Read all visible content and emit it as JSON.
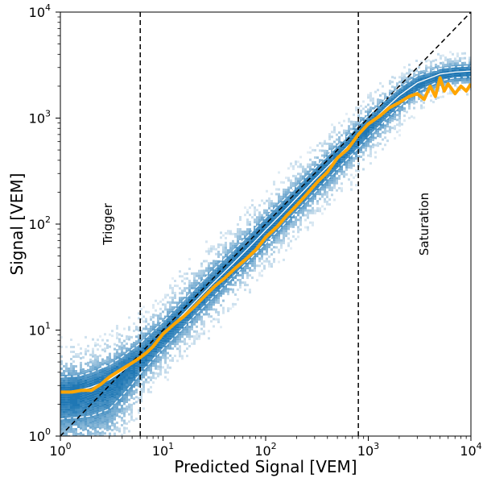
{
  "chart_data": {
    "type": "heatmap",
    "title": "",
    "xlabel": "Predicted Signal [VEM]",
    "ylabel": "Signal [VEM]",
    "xscale": "log",
    "yscale": "log",
    "xlim": [
      1,
      10000
    ],
    "ylim": [
      1,
      10000
    ],
    "x_ticks": [
      {
        "value": 1,
        "base": "10",
        "exp": "0"
      },
      {
        "value": 10,
        "base": "10",
        "exp": "1"
      },
      {
        "value": 100,
        "base": "10",
        "exp": "2"
      },
      {
        "value": 1000,
        "base": "10",
        "exp": "3"
      },
      {
        "value": 10000,
        "base": "10",
        "exp": "4"
      }
    ],
    "y_ticks": [
      {
        "value": 1,
        "base": "10",
        "exp": "0"
      },
      {
        "value": 10,
        "base": "10",
        "exp": "1"
      },
      {
        "value": 100,
        "base": "10",
        "exp": "2"
      },
      {
        "value": 1000,
        "base": "10",
        "exp": "3"
      },
      {
        "value": 10000,
        "base": "10",
        "exp": "4"
      }
    ],
    "vertical_lines": [
      {
        "x": 6,
        "label": "Trigger",
        "label_y": 100
      },
      {
        "x": 800,
        "label": "Saturation",
        "label_y": 100
      }
    ],
    "diagonal": {
      "from": [
        1,
        1
      ],
      "to": [
        10000,
        10000
      ]
    },
    "heatmap_color": "#1f77b4",
    "median_line": {
      "color": "#ffa500",
      "x": [
        1,
        1.3,
        1.6,
        2,
        2.5,
        3,
        4,
        5,
        6,
        7,
        8,
        10,
        13,
        16,
        20,
        25,
        32,
        40,
        50,
        63,
        80,
        100,
        130,
        160,
        200,
        250,
        320,
        400,
        500,
        630,
        800,
        1000,
        1300,
        1600,
        2000,
        2500,
        3000,
        3500,
        4000,
        4500,
        5000,
        5500,
        6000,
        7000,
        8000,
        9000,
        10000
      ],
      "y": [
        2.6,
        2.6,
        2.7,
        2.7,
        3.1,
        3.6,
        4.3,
        4.9,
        5.5,
        6.2,
        7.0,
        9.2,
        11.5,
        13.5,
        16.5,
        20.5,
        26,
        31,
        38,
        46,
        57,
        75,
        95,
        120,
        150,
        190,
        250,
        310,
        420,
        510,
        700,
        880,
        1050,
        1250,
        1400,
        1600,
        1700,
        1500,
        2000,
        1600,
        2400,
        1800,
        2100,
        1700,
        2000,
        1800,
        2100
      ]
    },
    "mean_line": {
      "color": "#ffffff",
      "x": [
        1,
        1.5,
        2,
        3,
        4,
        5,
        6,
        8,
        10,
        15,
        20,
        30,
        50,
        80,
        100,
        150,
        200,
        300,
        500,
        800,
        1000,
        1500,
        2000,
        3000,
        5000,
        7000,
        10000
      ],
      "y": [
        2.6,
        2.7,
        2.9,
        3.4,
        4.1,
        4.8,
        5.5,
        7.2,
        8.9,
        13.5,
        18,
        27,
        44,
        70,
        88,
        131,
        175,
        262,
        430,
        680,
        860,
        1260,
        1620,
        2150,
        2600,
        2720,
        2780
      ]
    },
    "band_upper": {
      "color": "#ffffff",
      "x": [
        1,
        1.5,
        2,
        3,
        4,
        5,
        6,
        8,
        10,
        15,
        20,
        30,
        50,
        80,
        100,
        150,
        200,
        300,
        500,
        800,
        1000,
        1500,
        2000,
        3000,
        5000,
        7000,
        10000
      ],
      "y": [
        3.6,
        3.7,
        4.0,
        4.7,
        5.6,
        6.6,
        7.5,
        9.8,
        12,
        18,
        24,
        36,
        58,
        92,
        115,
        170,
        225,
        335,
        545,
        850,
        1060,
        1520,
        1920,
        2500,
        2950,
        3050,
        3100
      ]
    },
    "band_lower": {
      "color": "#ffffff",
      "x": [
        1,
        1.5,
        2,
        3,
        4,
        5,
        6,
        8,
        10,
        15,
        20,
        30,
        50,
        80,
        100,
        150,
        200,
        300,
        500,
        800,
        1000,
        1500,
        2000,
        3000,
        5000,
        7000,
        10000
      ],
      "y": [
        1.45,
        1.5,
        1.55,
        1.8,
        2.4,
        3.1,
        3.9,
        5.3,
        6.7,
        10,
        13.5,
        20,
        33,
        53,
        66,
        99,
        132,
        198,
        330,
        520,
        660,
        980,
        1290,
        1780,
        2250,
        2400,
        2450
      ]
    }
  }
}
